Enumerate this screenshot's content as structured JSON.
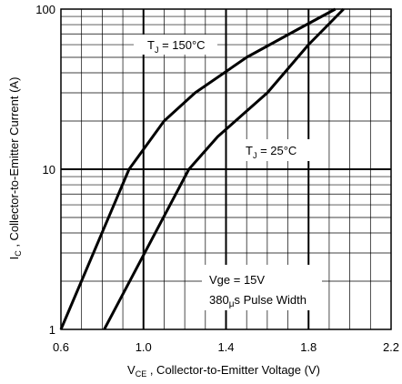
{
  "chart_data": {
    "type": "line",
    "xlabel": {
      "main": "V",
      "sub": "CE",
      "rest": " , Collector-to-Emitter Voltage (V)"
    },
    "ylabel": {
      "main": "I",
      "sub": "C",
      "rest": " , Collector-to-Emitter Current (A)"
    },
    "xlim": [
      0.6,
      2.2
    ],
    "ylim": [
      1,
      100
    ],
    "yscale": "log",
    "x_ticks": [
      0.6,
      1.0,
      1.4,
      1.8,
      2.2
    ],
    "x_tick_labels": [
      "0.6",
      "1.0",
      "1.4",
      "1.8",
      "2.2"
    ],
    "y_ticks": [
      1,
      10,
      100
    ],
    "y_tick_labels": [
      "1",
      "10",
      "100"
    ],
    "grid": true,
    "series": [
      {
        "name": "T_J = 150°C",
        "color": "#000000",
        "points": [
          [
            0.6,
            1.0
          ],
          [
            0.93,
            10.0
          ],
          [
            1.1,
            20.0
          ],
          [
            1.25,
            30.0
          ],
          [
            1.5,
            50.0
          ],
          [
            1.75,
            75.0
          ],
          [
            1.93,
            100.0
          ]
        ]
      },
      {
        "name": "T_J = 25°C",
        "color": "#000000",
        "points": [
          [
            0.81,
            1.0
          ],
          [
            1.22,
            10.0
          ],
          [
            1.36,
            16.0
          ],
          [
            1.6,
            30.0
          ],
          [
            1.8,
            60.0
          ],
          [
            1.97,
            100.0
          ]
        ]
      }
    ],
    "annotations": {
      "tj150": {
        "t": "T",
        "sub": "J",
        "rest": " = 150°C"
      },
      "tj25": {
        "t": "T",
        "sub": "J",
        "rest": " = 25°C"
      },
      "vge": "Vge = 15V",
      "pulse_pre": "380",
      "pulse_mu": "μ",
      "pulse_post": "s Pulse Width"
    }
  }
}
